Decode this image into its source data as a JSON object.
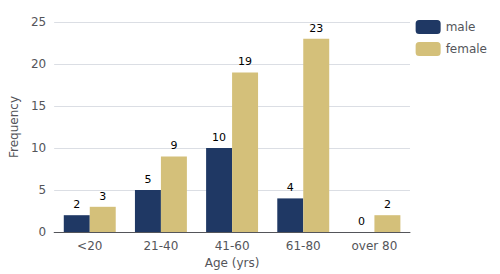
{
  "chart_data": {
    "type": "bar",
    "categories": [
      "<20",
      "21-40",
      "41-60",
      "61-80",
      "over 80"
    ],
    "series": [
      {
        "name": "male",
        "color": "#1F3864",
        "values": [
          2,
          5,
          10,
          4,
          0
        ]
      },
      {
        "name": "female",
        "color": "#D4C07A",
        "values": [
          3,
          9,
          19,
          23,
          2
        ]
      }
    ],
    "xlabel": "Age (yrs)",
    "ylabel": "Frequency",
    "ylim": [
      0,
      25
    ],
    "yticks": [
      0,
      5,
      10,
      15,
      20,
      25
    ],
    "grid": true,
    "legend": "upper right",
    "data_labels": true
  }
}
